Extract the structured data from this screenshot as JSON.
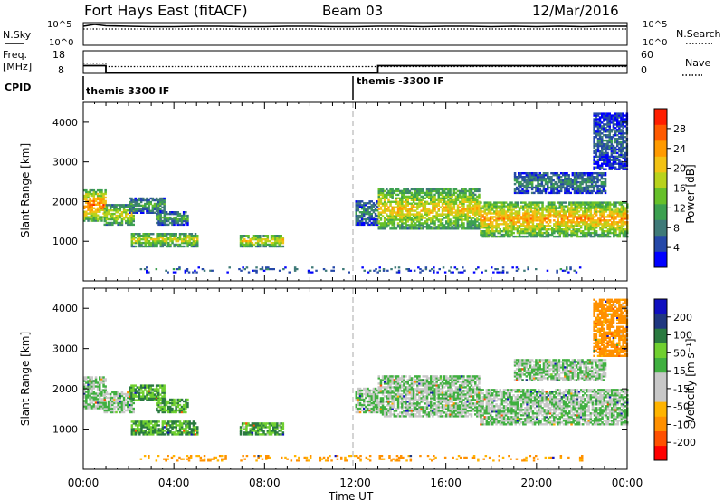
{
  "header": {
    "station": "Fort Hays East (fitACF)",
    "beam": "Beam 03",
    "date": "12/Mar/2016"
  },
  "nsky_panel": {
    "left_label": "N.Sky",
    "left_ticks": [
      "10^5",
      "10^0"
    ],
    "right_label": "N.Search",
    "right_ticks": [
      "10^5",
      "10^0"
    ]
  },
  "freq_panel": {
    "left_label_1": "Freq.",
    "left_label_2": "[MHz]",
    "left_ticks": [
      "18",
      "8"
    ],
    "right_label": "Nave",
    "right_ticks": [
      "60",
      "0"
    ]
  },
  "cpid": {
    "label": "CPID",
    "modes": [
      "themis 3300 IF",
      "themis -3300 IF"
    ]
  },
  "power_colorbar": {
    "label": "Power [dB]",
    "ticks": [
      "28",
      "24",
      "20",
      "16",
      "12",
      "8",
      "4"
    ],
    "colors": [
      "#0000ff",
      "#2548a8",
      "#3f7a78",
      "#3ca050",
      "#66c02a",
      "#b8d21c",
      "#f2c214",
      "#ff9a00",
      "#ff5a00",
      "#ff1e00"
    ]
  },
  "velocity_colorbar": {
    "label": "Velocity [m s⁻¹]",
    "ticks": [
      "200",
      "100",
      "50",
      "15",
      "-15",
      "-50",
      "-100",
      "-200"
    ],
    "colors": [
      "#ff0000",
      "#ff5000",
      "#ff9000",
      "#ffb400",
      "#c8c8c8",
      "#c8c8c8",
      "#40b040",
      "#70d030",
      "#2a7a40",
      "#203880",
      "#1010c0"
    ]
  },
  "chart_data": [
    {
      "type": "line",
      "name": "N.Sky / N.Search",
      "x": [
        0,
        0.5,
        1,
        2,
        3,
        4,
        5,
        6,
        7,
        8,
        9,
        10,
        11,
        12,
        13,
        14,
        15,
        16,
        17,
        18,
        19,
        20,
        21,
        22,
        23,
        24
      ],
      "series": [
        {
          "name": "N.Sky",
          "values": [
            4.2,
            4.6,
            4.3,
            4.2,
            4.1,
            4.1,
            4.2,
            4.2,
            4.1,
            4.1,
            4.2,
            4.2,
            4.1,
            4.1,
            4.2,
            4.2,
            4.1,
            4.2,
            4.2,
            4.1,
            4.2,
            4.1,
            4.2,
            4.1,
            4.2,
            4.2
          ]
        },
        {
          "name": "N.Search",
          "values": [
            3.6,
            3.6,
            3.6,
            3.6,
            3.6,
            3.6,
            3.6,
            3.6,
            3.6,
            3.6,
            3.6,
            3.6,
            3.6,
            3.6,
            3.6,
            3.6,
            3.6,
            3.6,
            3.6,
            3.6,
            3.6,
            3.6,
            3.6,
            3.6,
            3.6,
            3.6
          ]
        }
      ],
      "ylim": [
        0,
        5
      ]
    },
    {
      "type": "line",
      "name": "Freq / Nave",
      "series": [
        {
          "name": "Freq.",
          "x": [
            0,
            1.0,
            1.0,
            13.0,
            13.0,
            24
          ],
          "values": [
            11.4,
            11.4,
            8.4,
            8.4,
            11.4,
            11.4
          ]
        },
        {
          "name": "Nave",
          "x": [
            0,
            1.0,
            1.0,
            24
          ],
          "values": [
            27,
            27,
            18,
            18
          ]
        }
      ],
      "ylim_freq": [
        8,
        18
      ],
      "ylim_nave": [
        0,
        60
      ],
      "mode_change_hour": 11.9
    },
    {
      "type": "heatmap",
      "panel": "power",
      "xlabel": "",
      "ylabel": "Slant Range [km]",
      "xlim": [
        0,
        24
      ],
      "ylim": [
        0,
        4500
      ],
      "yticks": [
        1000,
        2000,
        3000,
        4000
      ],
      "xticks": [
        "00:00",
        "04:00",
        "08:00",
        "12:00",
        "16:00",
        "20:00",
        "00:00"
      ],
      "features": [
        {
          "t0": 0.0,
          "t1": 1.0,
          "r0": 1500,
          "r1": 2300,
          "value": 24
        },
        {
          "t0": 0.9,
          "t1": 2.2,
          "r0": 1400,
          "r1": 1900,
          "value": 18
        },
        {
          "t0": 2.0,
          "t1": 3.6,
          "r0": 1700,
          "r1": 2100,
          "value": 12
        },
        {
          "t0": 3.2,
          "t1": 4.6,
          "r0": 1400,
          "r1": 1750,
          "value": 12
        },
        {
          "t0": 2.1,
          "t1": 5.0,
          "r0": 850,
          "r1": 1200,
          "value": 18
        },
        {
          "t0": 6.9,
          "t1": 8.8,
          "r0": 850,
          "r1": 1150,
          "value": 20
        },
        {
          "t0": 12.0,
          "t1": 13.0,
          "r0": 1400,
          "r1": 2000,
          "value": 10
        },
        {
          "t0": 13.0,
          "t1": 17.5,
          "r0": 1300,
          "r1": 2300,
          "value": 20
        },
        {
          "t0": 17.5,
          "t1": 24.0,
          "r0": 1100,
          "r1": 2000,
          "value": 22
        },
        {
          "t0": 19.0,
          "t1": 23.0,
          "r0": 2200,
          "r1": 2700,
          "value": 10
        },
        {
          "t0": 22.5,
          "t1": 24.0,
          "r0": 2800,
          "r1": 4200,
          "value": 8
        },
        {
          "t0": 2.5,
          "t1": 22.0,
          "r0": 200,
          "r1": 350,
          "value": 8
        }
      ]
    },
    {
      "type": "heatmap",
      "panel": "velocity",
      "xlabel": "Time UT",
      "ylabel": "Slant Range [km]",
      "xlim": [
        0,
        24
      ],
      "ylim": [
        0,
        4500
      ],
      "yticks": [
        1000,
        2000,
        3000,
        4000
      ],
      "xticks": [
        "00:00",
        "04:00",
        "08:00",
        "12:00",
        "16:00",
        "20:00",
        "00:00"
      ],
      "features": [
        {
          "t0": 0.0,
          "t1": 1.0,
          "r0": 1500,
          "r1": 2300,
          "value": 0
        },
        {
          "t0": 0.9,
          "t1": 2.2,
          "r0": 1400,
          "r1": 1900,
          "value": 0
        },
        {
          "t0": 2.0,
          "t1": 3.6,
          "r0": 1700,
          "r1": 2100,
          "value": 30
        },
        {
          "t0": 3.2,
          "t1": 4.6,
          "r0": 1400,
          "r1": 1750,
          "value": 30
        },
        {
          "t0": 2.1,
          "t1": 5.0,
          "r0": 850,
          "r1": 1200,
          "value": 30
        },
        {
          "t0": 6.9,
          "t1": 8.8,
          "r0": 850,
          "r1": 1150,
          "value": 30
        },
        {
          "t0": 12.0,
          "t1": 13.0,
          "r0": 1400,
          "r1": 2000,
          "value": 0
        },
        {
          "t0": 13.0,
          "t1": 17.5,
          "r0": 1300,
          "r1": 2300,
          "value": 0
        },
        {
          "t0": 17.5,
          "t1": 24.0,
          "r0": 1100,
          "r1": 2000,
          "value": 0
        },
        {
          "t0": 19.0,
          "t1": 23.0,
          "r0": 2200,
          "r1": 2700,
          "value": 0
        },
        {
          "t0": 22.5,
          "t1": 24.0,
          "r0": 2800,
          "r1": 4200,
          "value": -60
        },
        {
          "t0": 2.5,
          "t1": 22.0,
          "r0": 200,
          "r1": 350,
          "value": -60
        }
      ]
    }
  ]
}
